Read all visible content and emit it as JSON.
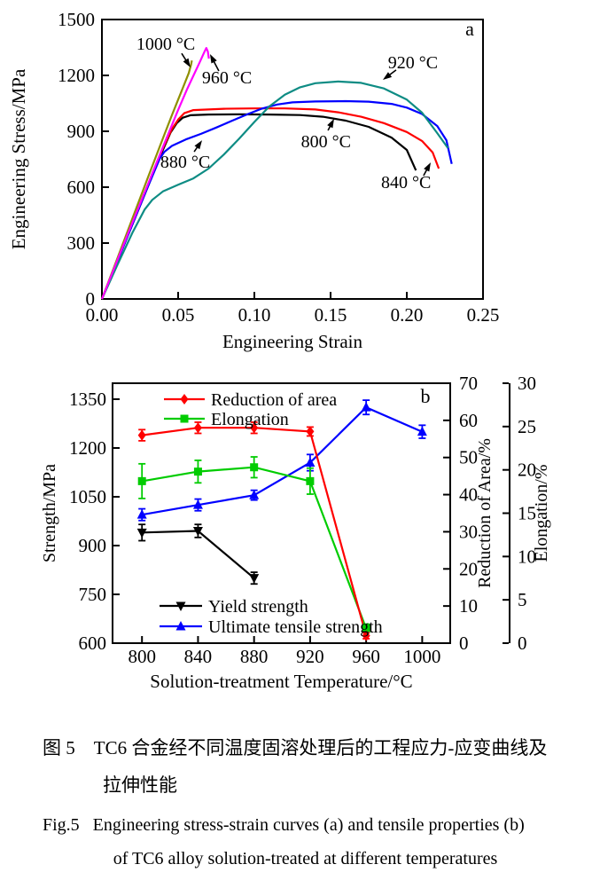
{
  "figure": {
    "caption_zh_line1": "图 5　TC6 合金经不同温度固溶处理后的工程应力-应变曲线及",
    "caption_zh_line2": "拉伸性能",
    "caption_en_line1": "Fig.5   Engineering stress-strain curves (a) and tensile properties (b)",
    "caption_en_line2": "of TC6 alloy solution-treated at different temperatures"
  },
  "chart_data": [
    {
      "id": "a",
      "type": "line",
      "panel_label": "a",
      "panel_pos": {
        "x": 0.2413,
        "y": 1414
      },
      "xlabel": "Engineering Strain",
      "ylabel": "Engineering Stress/MPa",
      "xlim": [
        0,
        0.25
      ],
      "ylim": [
        0,
        1500
      ],
      "xticks": [
        {
          "v": 0.0,
          "label": "0.00"
        },
        {
          "v": 0.05,
          "label": "0.05"
        },
        {
          "v": 0.1,
          "label": "0.10"
        },
        {
          "v": 0.15,
          "label": "0.15"
        },
        {
          "v": 0.2,
          "label": "0.20"
        },
        {
          "v": 0.25,
          "label": "0.25"
        }
      ],
      "yticks": [
        {
          "v": 0,
          "label": "0"
        },
        {
          "v": 300,
          "label": "300"
        },
        {
          "v": 600,
          "label": "600"
        },
        {
          "v": 900,
          "label": "900"
        },
        {
          "v": 1200,
          "label": "1200"
        },
        {
          "v": 1500,
          "label": "1500"
        }
      ],
      "series": [
        {
          "name": "800 °C",
          "color": "#000000",
          "points": [
            [
              0,
              0
            ],
            [
              0.01,
              200
            ],
            [
              0.02,
              400
            ],
            [
              0.03,
              600
            ],
            [
              0.04,
              800
            ],
            [
              0.045,
              893
            ],
            [
              0.049,
              943
            ],
            [
              0.053,
              973
            ],
            [
              0.058,
              986
            ],
            [
              0.07,
              990
            ],
            [
              0.09,
              991
            ],
            [
              0.11,
              990
            ],
            [
              0.13,
              987
            ],
            [
              0.145,
              978
            ],
            [
              0.16,
              957
            ],
            [
              0.175,
              924
            ],
            [
              0.19,
              866
            ],
            [
              0.2,
              800
            ],
            [
              0.206,
              690
            ]
          ]
        },
        {
          "name": "840 °C",
          "color": "#ff0000",
          "points": [
            [
              0,
              0
            ],
            [
              0.01,
              202
            ],
            [
              0.02,
              405
            ],
            [
              0.03,
              607
            ],
            [
              0.04,
              810
            ],
            [
              0.046,
              913
            ],
            [
              0.05,
              963
            ],
            [
              0.054,
              997
            ],
            [
              0.06,
              1014
            ],
            [
              0.08,
              1021
            ],
            [
              0.1,
              1023
            ],
            [
              0.12,
              1023
            ],
            [
              0.14,
              1017
            ],
            [
              0.155,
              1002
            ],
            [
              0.17,
              978
            ],
            [
              0.185,
              944
            ],
            [
              0.2,
              896
            ],
            [
              0.21,
              848
            ],
            [
              0.217,
              786
            ],
            [
              0.221,
              700
            ]
          ]
        },
        {
          "name": "880 °C",
          "color": "#0000ff",
          "points": [
            [
              0,
              0
            ],
            [
              0.01,
              200
            ],
            [
              0.02,
              400
            ],
            [
              0.03,
              600
            ],
            [
              0.038,
              755
            ],
            [
              0.041,
              790
            ],
            [
              0.046,
              822
            ],
            [
              0.055,
              856
            ],
            [
              0.065,
              886
            ],
            [
              0.075,
              920
            ],
            [
              0.085,
              955
            ],
            [
              0.095,
              990
            ],
            [
              0.105,
              1022
            ],
            [
              0.115,
              1044
            ],
            [
              0.125,
              1055
            ],
            [
              0.14,
              1060
            ],
            [
              0.16,
              1062
            ],
            [
              0.175,
              1059
            ],
            [
              0.19,
              1047
            ],
            [
              0.2,
              1027
            ],
            [
              0.21,
              993
            ],
            [
              0.22,
              928
            ],
            [
              0.226,
              852
            ],
            [
              0.2295,
              725
            ]
          ]
        },
        {
          "name": "920 °C",
          "color": "#0e8c84",
          "points": [
            [
              0,
              0
            ],
            [
              0.01,
              180
            ],
            [
              0.02,
              355
            ],
            [
              0.028,
              480
            ],
            [
              0.033,
              532
            ],
            [
              0.04,
              577
            ],
            [
              0.05,
              613
            ],
            [
              0.06,
              647
            ],
            [
              0.07,
              700
            ],
            [
              0.08,
              775
            ],
            [
              0.09,
              860
            ],
            [
              0.1,
              950
            ],
            [
              0.11,
              1035
            ],
            [
              0.12,
              1096
            ],
            [
              0.13,
              1136
            ],
            [
              0.14,
              1158
            ],
            [
              0.155,
              1167
            ],
            [
              0.17,
              1160
            ],
            [
              0.185,
              1130
            ],
            [
              0.2,
              1070
            ],
            [
              0.21,
              1000
            ],
            [
              0.22,
              890
            ],
            [
              0.227,
              810
            ]
          ]
        },
        {
          "name": "1000 °C",
          "color": "#8f8f00",
          "points": [
            [
              0,
              0
            ],
            [
              0.01,
              215
            ],
            [
              0.02,
              432
            ],
            [
              0.03,
              648
            ],
            [
              0.04,
              862
            ],
            [
              0.046,
              988
            ],
            [
              0.05,
              1070
            ],
            [
              0.054,
              1152
            ],
            [
              0.057,
              1213
            ],
            [
              0.0585,
              1258
            ],
            [
              0.059,
              1280
            ]
          ]
        },
        {
          "name": "960 °C",
          "color": "#ff00ff",
          "points": [
            [
              0,
              0
            ],
            [
              0.01,
              205
            ],
            [
              0.02,
              410
            ],
            [
              0.03,
              612
            ],
            [
              0.04,
              815
            ],
            [
              0.05,
              1015
            ],
            [
              0.056,
              1128
            ],
            [
              0.06,
              1198
            ],
            [
              0.064,
              1268
            ],
            [
              0.067,
              1322
            ],
            [
              0.0685,
              1347
            ],
            [
              0.0695,
              1328
            ],
            [
              0.0702,
              1290
            ]
          ]
        }
      ],
      "annotations": [
        {
          "text": "1000 °C",
          "x": 0.0419,
          "y": 1338,
          "arrow": {
            "x1": 0.0523,
            "y1": 1318,
            "x2": 0.0581,
            "y2": 1243
          }
        },
        {
          "text": "960 °C",
          "x": 0.082,
          "y": 1157,
          "arrow": {
            "x1": 0.0767,
            "y1": 1224,
            "x2": 0.0709,
            "y2": 1314
          }
        },
        {
          "text": "920 °C",
          "x": 0.204,
          "y": 1238,
          "arrow": {
            "x1": 0.193,
            "y1": 1229,
            "x2": 0.1843,
            "y2": 1176
          }
        },
        {
          "text": "800 °C",
          "x": 0.147,
          "y": 814,
          "arrow": {
            "x1": 0.1483,
            "y1": 905,
            "x2": 0.1523,
            "y2": 967
          }
        },
        {
          "text": "880 °C",
          "x": 0.0547,
          "y": 705,
          "arrow": {
            "x1": 0.0605,
            "y1": 790,
            "x2": 0.0657,
            "y2": 852
          }
        },
        {
          "text": "840 °C",
          "x": 0.1995,
          "y": 595,
          "arrow": {
            "x1": 0.211,
            "y1": 662,
            "x2": 0.2157,
            "y2": 733
          }
        }
      ]
    },
    {
      "id": "b",
      "type": "line",
      "panel_label": "b",
      "xlabel": "Solution-treatment Temperature/°C",
      "ylabel_left": "Strength/MPa",
      "ylabel_right1": "Reduction of Area/%",
      "ylabel_right2": "Elongation/%",
      "xticks": [
        800,
        840,
        880,
        920,
        960,
        1000
      ],
      "xlim_frame": [
        779,
        1020
      ],
      "yleft": {
        "lim": [
          600,
          1350
        ],
        "ticks": [
          600,
          750,
          900,
          1050,
          1200,
          1350
        ]
      },
      "yright1": {
        "lim": [
          0,
          70
        ],
        "ticks": [
          0,
          10,
          20,
          30,
          40,
          50,
          60,
          70
        ]
      },
      "yright2": {
        "lim": [
          0,
          30
        ],
        "ticks": [
          0,
          5,
          10,
          15,
          20,
          25,
          30
        ]
      },
      "series": [
        {
          "name": "Yield strength",
          "color": "#000000",
          "marker": "triangle-down",
          "axis": "left",
          "x": [
            800,
            840,
            880
          ],
          "y": [
            940,
            945,
            800
          ],
          "err": [
            25,
            20,
            18
          ]
        },
        {
          "name": "Ultimate tensile strength",
          "color": "#0000ff",
          "marker": "triangle-up",
          "axis": "left",
          "x": [
            800,
            840,
            880,
            920,
            960,
            1000
          ],
          "y": [
            995,
            1025,
            1055,
            1155,
            1325,
            1250
          ],
          "err": [
            18,
            18,
            15,
            25,
            22,
            20
          ]
        },
        {
          "name": "Elongation",
          "color": "#00cc00",
          "marker": "square",
          "axis": "right2",
          "x": [
            800,
            840,
            880,
            920,
            960
          ],
          "y": [
            18.7,
            19.8,
            20.3,
            18.7,
            1.7
          ],
          "err": [
            2.0,
            1.3,
            1.2,
            1.5,
            0.5
          ]
        },
        {
          "name": "Reduction of area",
          "color": "#ff0000",
          "marker": "diamond",
          "axis": "right1",
          "x": [
            800,
            840,
            880,
            920,
            960
          ],
          "y": [
            56,
            58,
            58,
            57,
            2
          ],
          "err": [
            1.5,
            1.5,
            1.5,
            1.2,
            0.8
          ]
        }
      ],
      "legend_top": [
        "Reduction of area",
        "Elongation"
      ],
      "legend_bottom": [
        "Yield strength",
        "Ultimate tensile strength"
      ]
    }
  ]
}
